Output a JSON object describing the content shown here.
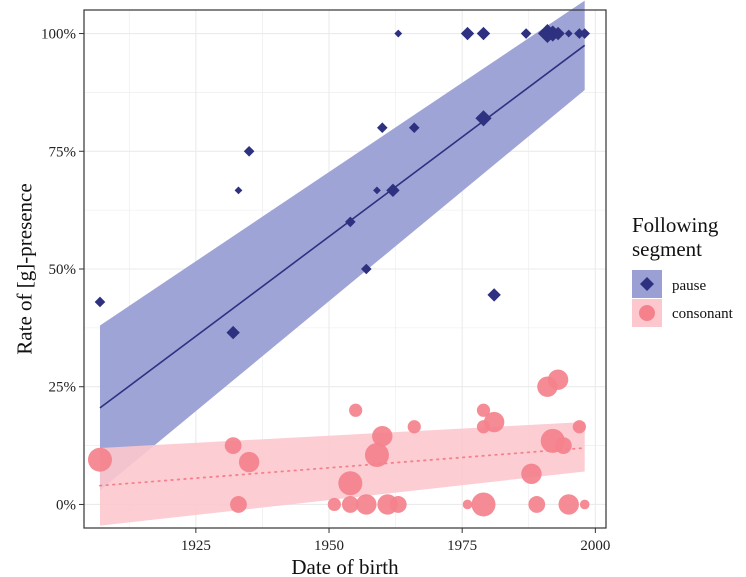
{
  "chart_data": {
    "type": "scatter",
    "xlabel": "Date of birth",
    "ylabel": "Rate of [g]-presence",
    "xlim": [
      1904,
      2002
    ],
    "ylim": [
      -0.05,
      1.05
    ],
    "x_ticks": [
      1925,
      1950,
      1975,
      2000
    ],
    "y_ticks": [
      0,
      0.25,
      0.5,
      0.75,
      1.0
    ],
    "y_tick_labels": [
      "0%",
      "25%",
      "50%",
      "75%",
      "100%"
    ],
    "grid": true,
    "legend": {
      "title": "Following segment",
      "title_lines": [
        "Following",
        "segment"
      ],
      "position": "right",
      "entries": [
        "pause",
        "consonant"
      ]
    },
    "colors": {
      "pause_point": "#2e3180",
      "pause_band": "#9a9fd4",
      "consonant_point": "#f4818c",
      "consonant_band": "#fcc8cd",
      "panel_border": "#333333",
      "grid": "#ebebeb"
    },
    "series": [
      {
        "name": "pause",
        "marker": "diamond",
        "trend": {
          "style": "solid",
          "x": [
            1907,
            1998
          ],
          "y": [
            0.205,
            0.975
          ],
          "band_lower": [
            0.03,
            0.88
          ],
          "band_upper": [
            0.38,
            1.07
          ]
        },
        "points": [
          {
            "x": 1907,
            "y": 0.43,
            "weight": 2
          },
          {
            "x": 1932,
            "y": 0.365,
            "weight": 3
          },
          {
            "x": 1933,
            "y": 0.667,
            "weight": 1
          },
          {
            "x": 1935,
            "y": 0.75,
            "weight": 2
          },
          {
            "x": 1954,
            "y": 0.6,
            "weight": 2
          },
          {
            "x": 1957,
            "y": 0.5,
            "weight": 2
          },
          {
            "x": 1959,
            "y": 0.667,
            "weight": 1
          },
          {
            "x": 1960,
            "y": 0.8,
            "weight": 2
          },
          {
            "x": 1962,
            "y": 0.667,
            "weight": 3
          },
          {
            "x": 1963,
            "y": 1.0,
            "weight": 1
          },
          {
            "x": 1966,
            "y": 0.8,
            "weight": 2
          },
          {
            "x": 1976,
            "y": 1.0,
            "weight": 3
          },
          {
            "x": 1979,
            "y": 1.0,
            "weight": 3
          },
          {
            "x": 1979,
            "y": 0.82,
            "weight": 4
          },
          {
            "x": 1981,
            "y": 0.445,
            "weight": 3
          },
          {
            "x": 1987,
            "y": 1.0,
            "weight": 2
          },
          {
            "x": 1991,
            "y": 1.0,
            "weight": 5
          },
          {
            "x": 1992,
            "y": 1.0,
            "weight": 4
          },
          {
            "x": 1993,
            "y": 1.0,
            "weight": 3
          },
          {
            "x": 1995,
            "y": 1.0,
            "weight": 1
          },
          {
            "x": 1997,
            "y": 1.0,
            "weight": 2
          },
          {
            "x": 1998,
            "y": 1.0,
            "weight": 2
          }
        ]
      },
      {
        "name": "consonant",
        "marker": "circle",
        "trend": {
          "style": "dotted",
          "x": [
            1907,
            1998
          ],
          "y": [
            0.04,
            0.12
          ],
          "band_lower": [
            -0.045,
            0.07
          ],
          "band_upper": [
            0.12,
            0.175
          ]
        },
        "points": [
          {
            "x": 1907,
            "y": 0.095,
            "weight": 5
          },
          {
            "x": 1932,
            "y": 0.125,
            "weight": 3
          },
          {
            "x": 1933,
            "y": 0.0,
            "weight": 3
          },
          {
            "x": 1935,
            "y": 0.09,
            "weight": 4
          },
          {
            "x": 1951,
            "y": 0.0,
            "weight": 2
          },
          {
            "x": 1954,
            "y": 0.045,
            "weight": 5
          },
          {
            "x": 1954,
            "y": 0.0,
            "weight": 3
          },
          {
            "x": 1955,
            "y": 0.2,
            "weight": 2
          },
          {
            "x": 1957,
            "y": 0.0,
            "weight": 4
          },
          {
            "x": 1959,
            "y": 0.105,
            "weight": 5
          },
          {
            "x": 1960,
            "y": 0.145,
            "weight": 4
          },
          {
            "x": 1961,
            "y": 0.0,
            "weight": 4
          },
          {
            "x": 1963,
            "y": 0.0,
            "weight": 3
          },
          {
            "x": 1966,
            "y": 0.165,
            "weight": 2
          },
          {
            "x": 1976,
            "y": 0.0,
            "weight": 1
          },
          {
            "x": 1979,
            "y": 0.2,
            "weight": 2
          },
          {
            "x": 1979,
            "y": 0.165,
            "weight": 2
          },
          {
            "x": 1979,
            "y": 0.0,
            "weight": 5
          },
          {
            "x": 1981,
            "y": 0.175,
            "weight": 4
          },
          {
            "x": 1988,
            "y": 0.065,
            "weight": 4
          },
          {
            "x": 1989,
            "y": 0.0,
            "weight": 3
          },
          {
            "x": 1991,
            "y": 0.25,
            "weight": 4
          },
          {
            "x": 1992,
            "y": 0.135,
            "weight": 5
          },
          {
            "x": 1993,
            "y": 0.265,
            "weight": 4
          },
          {
            "x": 1994,
            "y": 0.125,
            "weight": 3
          },
          {
            "x": 1995,
            "y": 0.0,
            "weight": 4
          },
          {
            "x": 1997,
            "y": 0.165,
            "weight": 2
          },
          {
            "x": 1998,
            "y": 0.0,
            "weight": 1
          }
        ]
      }
    ]
  }
}
